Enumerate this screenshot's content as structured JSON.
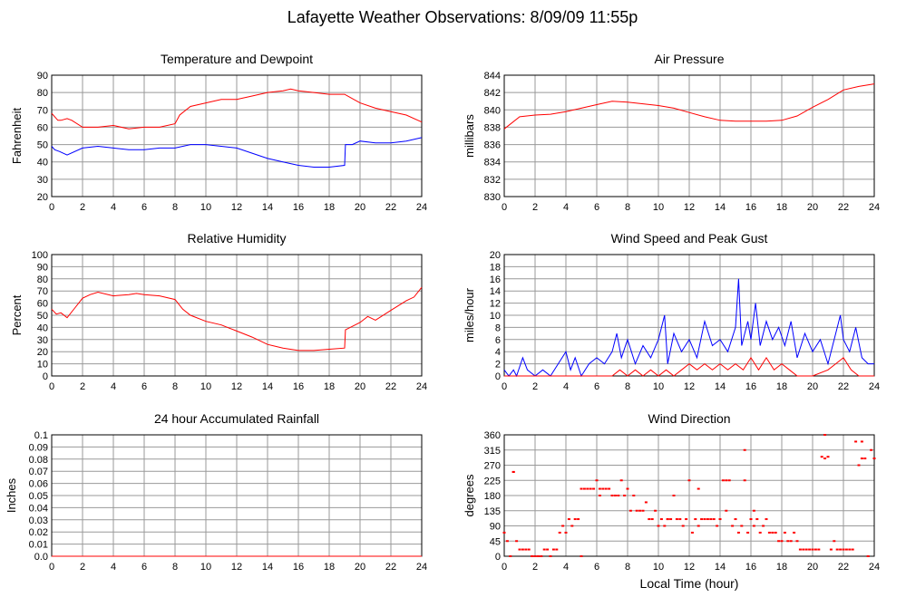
{
  "page": {
    "title": "Lafayette Weather Observations: 8/09/09 11:55p",
    "xlabel": "Local Time (hour)"
  },
  "colors": {
    "red": "#ff0000",
    "blue": "#0000ff",
    "grid": "#999999",
    "axis": "#000000"
  },
  "chart_data": [
    {
      "id": "temp",
      "type": "line",
      "title": "Temperature and Dewpoint",
      "xlabel": "",
      "ylabel": "Fahrenheit",
      "xlim": [
        0,
        24
      ],
      "ylim": [
        20,
        90
      ],
      "xticks": [
        0,
        2,
        4,
        6,
        8,
        10,
        12,
        14,
        16,
        18,
        20,
        22,
        24
      ],
      "yticks": [
        20,
        30,
        40,
        50,
        60,
        70,
        80,
        90
      ],
      "grid": true,
      "series": [
        {
          "color": "#ff0000",
          "x": [
            0,
            0.4,
            0.6,
            1,
            1.3,
            2,
            3,
            4,
            5,
            6,
            7,
            8,
            8.3,
            9,
            10,
            11,
            12,
            13,
            14,
            15,
            15.5,
            16,
            17,
            18,
            19,
            20,
            21,
            22,
            23,
            24
          ],
          "y": [
            68,
            64,
            64,
            65,
            64,
            60,
            60,
            61,
            59,
            60,
            60,
            62,
            67,
            72,
            74,
            76,
            76,
            78,
            80,
            81,
            82,
            81,
            80,
            79,
            79,
            74,
            71,
            69,
            67,
            63
          ]
        },
        {
          "color": "#0000ff",
          "x": [
            0,
            0.2,
            0.5,
            1,
            2,
            3,
            4,
            5,
            6,
            7,
            8,
            9,
            10,
            11,
            12,
            13,
            14,
            15,
            16,
            17,
            18,
            19,
            19.05,
            19.5,
            20,
            21,
            22,
            23,
            24
          ],
          "y": [
            49,
            47,
            46,
            44,
            48,
            49,
            48,
            47,
            47,
            48,
            48,
            50,
            50,
            49,
            48,
            45,
            42,
            40,
            38,
            37,
            37,
            38,
            50,
            50,
            52,
            51,
            51,
            52,
            54
          ]
        }
      ]
    },
    {
      "id": "pressure",
      "type": "line",
      "title": "Air Pressure",
      "xlabel": "",
      "ylabel": "millibars",
      "xlim": [
        0,
        24
      ],
      "ylim": [
        830,
        844
      ],
      "xticks": [
        0,
        2,
        4,
        6,
        8,
        10,
        12,
        14,
        16,
        18,
        20,
        22,
        24
      ],
      "yticks": [
        830,
        832,
        834,
        836,
        838,
        840,
        842,
        844
      ],
      "grid": true,
      "series": [
        {
          "color": "#ff0000",
          "x": [
            0,
            1,
            2,
            3,
            4,
            5,
            6,
            7,
            8,
            9,
            10,
            11,
            12,
            13,
            14,
            15,
            16,
            17,
            18,
            19,
            20,
            21,
            22,
            23,
            24
          ],
          "y": [
            837.8,
            839.2,
            839.4,
            839.5,
            839.8,
            840.2,
            840.6,
            841,
            840.9,
            840.7,
            840.5,
            840.2,
            839.7,
            839.2,
            838.8,
            838.7,
            838.7,
            838.7,
            838.8,
            839.3,
            840.3,
            841.2,
            842.3,
            842.7,
            843
          ]
        }
      ]
    },
    {
      "id": "humidity",
      "type": "line",
      "title": "Relative Humidity",
      "xlabel": "",
      "ylabel": "Percent",
      "xlim": [
        0,
        24
      ],
      "ylim": [
        0,
        100
      ],
      "xticks": [
        0,
        2,
        4,
        6,
        8,
        10,
        12,
        14,
        16,
        18,
        20,
        22,
        24
      ],
      "yticks": [
        0,
        10,
        20,
        30,
        40,
        50,
        60,
        70,
        80,
        90,
        100
      ],
      "grid": true,
      "series": [
        {
          "color": "#ff0000",
          "x": [
            0,
            0.3,
            0.6,
            1,
            1.5,
            2,
            2.5,
            3,
            4,
            5,
            5.5,
            6,
            7,
            8,
            8.5,
            9,
            10,
            11,
            12,
            13,
            14,
            15,
            16,
            17,
            18,
            19,
            19.05,
            20,
            20.5,
            21,
            22,
            23,
            23.5,
            24
          ],
          "y": [
            55,
            51,
            52,
            48,
            56,
            64,
            67,
            69,
            66,
            67,
            68,
            67,
            66,
            63,
            55,
            50,
            45,
            42,
            37,
            32,
            26,
            23,
            21,
            21,
            22,
            23,
            38,
            44,
            49,
            46,
            54,
            62,
            65,
            73
          ]
        }
      ]
    },
    {
      "id": "wind",
      "type": "line",
      "title": "Wind Speed and Peak Gust",
      "xlabel": "",
      "ylabel": "miles/hour",
      "xlim": [
        0,
        24
      ],
      "ylim": [
        0,
        20
      ],
      "xticks": [
        0,
        2,
        4,
        6,
        8,
        10,
        12,
        14,
        16,
        18,
        20,
        22,
        24
      ],
      "yticks": [
        0,
        2,
        4,
        6,
        8,
        10,
        12,
        14,
        16,
        18,
        20
      ],
      "grid": true,
      "series": [
        {
          "color": "#0000ff",
          "x": [
            0,
            0.3,
            0.6,
            0.8,
            1.2,
            1.5,
            2,
            2.5,
            3,
            3.5,
            4,
            4.3,
            4.6,
            5,
            5.5,
            6,
            6.5,
            7,
            7.3,
            7.6,
            8,
            8.5,
            9,
            9.5,
            10,
            10.4,
            10.6,
            11,
            11.5,
            12,
            12.5,
            13,
            13.5,
            14,
            14.5,
            15,
            15.2,
            15.4,
            15.8,
            16,
            16.3,
            16.6,
            17,
            17.4,
            17.8,
            18.2,
            18.6,
            19,
            19.5,
            20,
            20.5,
            21,
            21.5,
            21.8,
            22,
            22.4,
            22.8,
            23.2,
            23.6,
            24
          ],
          "y": [
            1,
            0,
            1,
            0,
            3,
            1,
            0,
            1,
            0,
            2,
            4,
            1,
            3,
            0,
            2,
            3,
            2,
            4,
            7,
            3,
            6,
            2,
            5,
            3,
            6,
            10,
            2,
            7,
            4,
            6,
            3,
            9,
            5,
            6,
            4,
            8,
            16,
            5,
            9,
            6,
            12,
            5,
            9,
            6,
            8,
            5,
            9,
            3,
            7,
            4,
            6,
            2,
            7,
            10,
            6,
            4,
            8,
            3,
            2,
            2
          ]
        },
        {
          "color": "#ff0000",
          "x": [
            0,
            7,
            7.5,
            8,
            8.5,
            9,
            9.5,
            10,
            10.5,
            11,
            11.5,
            12,
            12.5,
            13,
            13.5,
            14,
            14.5,
            15,
            15.5,
            16,
            16.5,
            17,
            17.5,
            18,
            18.5,
            19,
            20,
            21,
            21.5,
            22,
            22.5,
            23,
            24
          ],
          "y": [
            0,
            0,
            1,
            0,
            1,
            0,
            1,
            0,
            1,
            0,
            1,
            2,
            1,
            2,
            1,
            2,
            1,
            2,
            1,
            3,
            1,
            3,
            1,
            2,
            1,
            0,
            0,
            1,
            2,
            3,
            1,
            0,
            0
          ]
        }
      ]
    },
    {
      "id": "rain",
      "type": "line",
      "title": "24 hour Accumulated Rainfall",
      "xlabel": "",
      "ylabel": "Inches",
      "xlim": [
        0,
        24
      ],
      "ylim": [
        0,
        0.1
      ],
      "xticks": [
        0,
        2,
        4,
        6,
        8,
        10,
        12,
        14,
        16,
        18,
        20,
        22,
        24
      ],
      "yticks": [
        0.0,
        0.01,
        0.02,
        0.03,
        0.04,
        0.05,
        0.06,
        0.07,
        0.08,
        0.09,
        0.1
      ],
      "ytick_labels": [
        "0.0",
        "0.01",
        "0.02",
        "0.03",
        "0.04",
        "0.05",
        "0.06",
        "0.07",
        "0.08",
        "0.09",
        "0.1"
      ],
      "grid": true,
      "series": [
        {
          "color": "#ff0000",
          "x": [
            0,
            24
          ],
          "y": [
            0,
            0
          ]
        }
      ]
    },
    {
      "id": "direction",
      "type": "scatter",
      "title": "Wind Direction",
      "xlabel": "Local Time (hour)",
      "ylabel": "degrees",
      "xlim": [
        0,
        24
      ],
      "ylim": [
        0,
        360
      ],
      "xticks": [
        0,
        2,
        4,
        6,
        8,
        10,
        12,
        14,
        16,
        18,
        20,
        22,
        24
      ],
      "yticks": [
        0,
        45,
        90,
        135,
        180,
        225,
        270,
        315,
        360
      ],
      "grid": true,
      "series": [
        {
          "color": "#ff0000",
          "x": [
            0,
            0.2,
            0.4,
            0.6,
            0.8,
            1,
            1.2,
            1.4,
            1.6,
            1.8,
            2,
            2.2,
            2.4,
            2.6,
            2.8,
            3,
            3.2,
            3.4,
            3.6,
            3.8,
            4,
            4.2,
            4.4,
            4.6,
            4.8,
            5,
            5.2,
            5.4,
            5.6,
            5.8,
            6,
            6.2,
            6.4,
            6.6,
            6.8,
            7,
            7.2,
            7.4,
            7.6,
            7.8,
            8,
            8.2,
            8.4,
            8.6,
            8.8,
            9,
            9.2,
            9.4,
            9.6,
            9.8,
            10,
            10.2,
            10.4,
            10.6,
            10.8,
            11,
            11.2,
            11.4,
            11.6,
            11.8,
            12,
            12.2,
            12.4,
            12.6,
            12.8,
            13,
            13.2,
            13.4,
            13.6,
            13.8,
            14,
            14.2,
            14.4,
            14.6,
            14.8,
            15,
            15.2,
            15.4,
            15.6,
            15.8,
            16,
            16.2,
            16.4,
            16.6,
            16.8,
            17,
            17.2,
            17.4,
            17.6,
            17.8,
            18,
            18.2,
            18.4,
            18.6,
            18.8,
            19,
            19.2,
            19.4,
            19.6,
            19.8,
            20,
            20.2,
            20.4,
            20.6,
            20.8,
            21,
            21.2,
            21.4,
            21.6,
            21.8,
            22,
            22.2,
            22.4,
            22.6,
            22.8,
            23,
            23.2,
            23.4,
            23.6,
            23.8,
            24,
            0.6,
            5,
            6.2,
            7.8,
            10.6,
            12.6,
            14.4,
            15.6,
            16.2,
            20.8,
            23.2
          ],
          "y": [
            70,
            45,
            0,
            250,
            45,
            20,
            20,
            20,
            20,
            0,
            0,
            0,
            0,
            20,
            20,
            0,
            20,
            20,
            70,
            90,
            70,
            110,
            90,
            110,
            110,
            200,
            200,
            200,
            200,
            200,
            225,
            180,
            200,
            200,
            200,
            180,
            180,
            180,
            225,
            180,
            200,
            135,
            180,
            135,
            135,
            135,
            160,
            110,
            110,
            135,
            90,
            110,
            90,
            110,
            110,
            180,
            110,
            110,
            90,
            110,
            225,
            70,
            110,
            90,
            110,
            110,
            110,
            110,
            110,
            90,
            110,
            225,
            225,
            225,
            90,
            110,
            70,
            90,
            225,
            70,
            110,
            90,
            110,
            70,
            90,
            110,
            70,
            70,
            70,
            45,
            45,
            70,
            45,
            45,
            70,
            45,
            20,
            20,
            20,
            20,
            20,
            20,
            20,
            295,
            290,
            295,
            20,
            45,
            20,
            20,
            20,
            20,
            20,
            20,
            340,
            270,
            290,
            290,
            0,
            315,
            290,
            250,
            0,
            200,
            180,
            110,
            200,
            135,
            315,
            135,
            360,
            340
          ]
        }
      ]
    }
  ]
}
